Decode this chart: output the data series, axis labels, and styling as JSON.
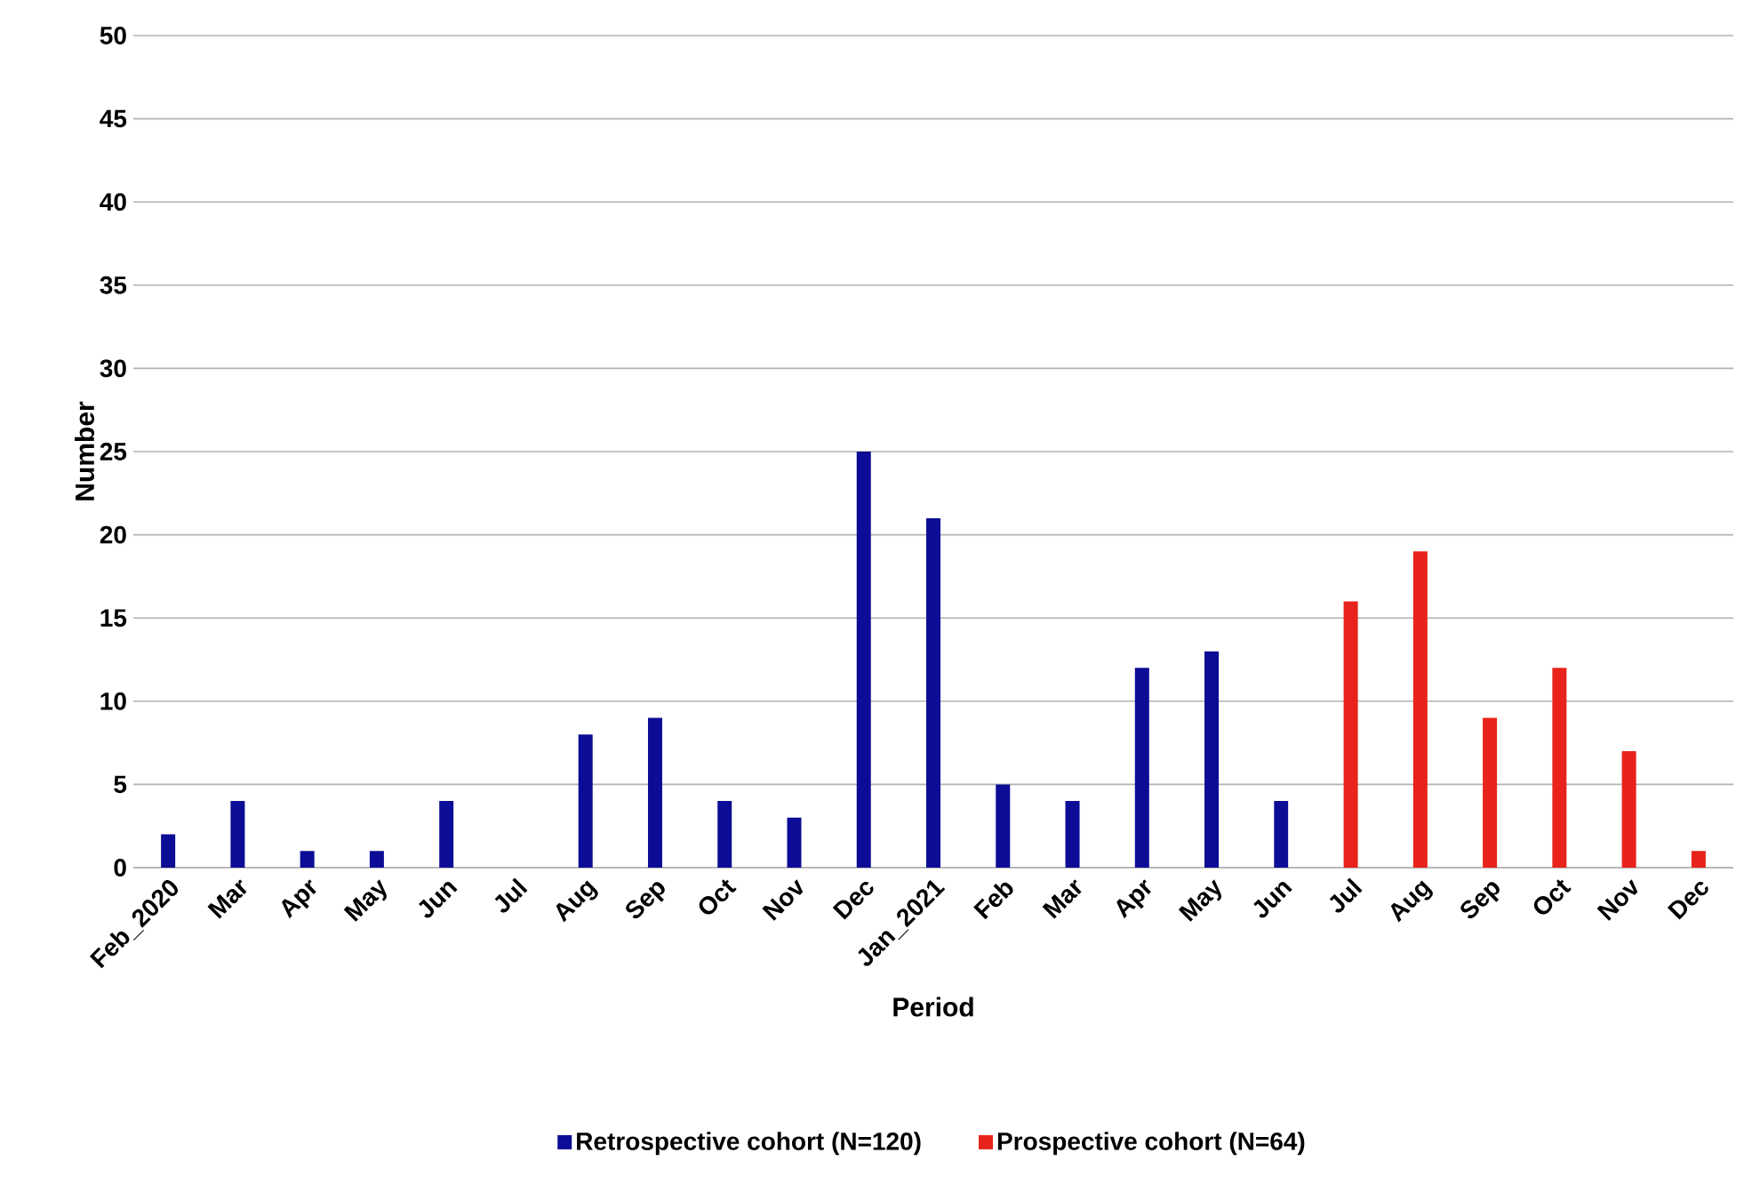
{
  "chart_data": {
    "type": "bar",
    "xlabel": "Period",
    "ylabel": "Number",
    "categories": [
      "Feb_2020",
      "Mar",
      "Apr",
      "May",
      "Jun",
      "Jul",
      "Aug",
      "Sep",
      "Oct",
      "Nov",
      "Dec",
      "Jan_2021",
      "Feb",
      "Mar",
      "Apr",
      "May",
      "Jun",
      "Jul",
      "Aug",
      "Sep",
      "Oct",
      "Nov",
      "Dec"
    ],
    "series": [
      {
        "name": "Retrospective cohort (N=120)",
        "color": "#0c0c96",
        "values": [
          2,
          4,
          1,
          1,
          4,
          0,
          8,
          9,
          4,
          3,
          25,
          21,
          5,
          4,
          12,
          13,
          4,
          null,
          null,
          null,
          null,
          null,
          null
        ]
      },
      {
        "name": "Prospective cohort (N=64)",
        "color": "#e8231b",
        "values": [
          null,
          null,
          null,
          null,
          null,
          null,
          null,
          null,
          null,
          null,
          null,
          null,
          null,
          null,
          null,
          null,
          null,
          16,
          19,
          9,
          12,
          7,
          1
        ]
      }
    ],
    "ylim": [
      0,
      50
    ],
    "yticks": [
      0,
      5,
      10,
      15,
      20,
      25,
      30,
      35,
      40,
      45,
      50
    ],
    "grid": "y",
    "legend": "bottom"
  }
}
